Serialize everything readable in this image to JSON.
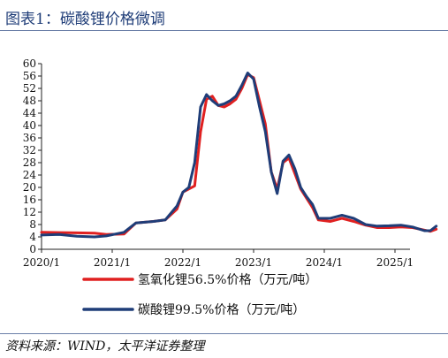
{
  "header": {
    "title": "图表1：碳酸锂价格微调"
  },
  "footer": {
    "source": "资料来源：WIND，太平洋证券整理"
  },
  "colors": {
    "accent": "#1f3d78",
    "series_red": "#e02020",
    "series_navy": "#1f3d78"
  },
  "chart_data": {
    "type": "line",
    "title": "",
    "xlabel": "",
    "ylabel": "",
    "ylim": [
      0,
      60
    ],
    "yticks": [
      0,
      4,
      8,
      12,
      16,
      20,
      24,
      28,
      32,
      36,
      40,
      44,
      48,
      52,
      56,
      60
    ],
    "xticks": [
      "2020/1",
      "2021/1",
      "2022/1",
      "2023/1",
      "2024/1",
      "2025/1"
    ],
    "grid": false,
    "legend": "bottom",
    "series": [
      {
        "name": "氢氧化锂56.5%价格（万元/吨）",
        "color": "#e02020",
        "points": [
          [
            "2020-01",
            5.5
          ],
          [
            "2020-04",
            5.4
          ],
          [
            "2020-07",
            5.3
          ],
          [
            "2020-10",
            5.2
          ],
          [
            "2020-12",
            4.8
          ],
          [
            "2021-03",
            4.9
          ],
          [
            "2021-05",
            8.5
          ],
          [
            "2021-08",
            9.0
          ],
          [
            "2021-10",
            9.5
          ],
          [
            "2021-12",
            13.0
          ],
          [
            "2022-01",
            18.5
          ],
          [
            "2022-02",
            19.5
          ],
          [
            "2022-03",
            20.5
          ],
          [
            "2022-04",
            38.0
          ],
          [
            "2022-05",
            48.5
          ],
          [
            "2022-06",
            49.5
          ],
          [
            "2022-07",
            46.5
          ],
          [
            "2022-08",
            46.0
          ],
          [
            "2022-09",
            47.0
          ],
          [
            "2022-10",
            48.5
          ],
          [
            "2022-11",
            52.0
          ],
          [
            "2022-12",
            56.5
          ],
          [
            "2023-01",
            55.5
          ],
          [
            "2023-02",
            48.0
          ],
          [
            "2023-03",
            40.5
          ],
          [
            "2023-04",
            25.0
          ],
          [
            "2023-05",
            19.5
          ],
          [
            "2023-06",
            28.0
          ],
          [
            "2023-07",
            29.5
          ],
          [
            "2023-08",
            24.5
          ],
          [
            "2023-09",
            19.5
          ],
          [
            "2023-10",
            16.5
          ],
          [
            "2023-11",
            13.5
          ],
          [
            "2023-12",
            9.5
          ],
          [
            "2024-02",
            9.0
          ],
          [
            "2024-04",
            10.0
          ],
          [
            "2024-06",
            9.0
          ],
          [
            "2024-08",
            7.8
          ],
          [
            "2024-10",
            7.0
          ],
          [
            "2024-12",
            7.0
          ],
          [
            "2025-02",
            7.2
          ],
          [
            "2025-04",
            7.0
          ],
          [
            "2025-06",
            6.2
          ],
          [
            "2025-07",
            5.8
          ],
          [
            "2025-08",
            6.5
          ]
        ]
      },
      {
        "name": "碳酸锂99.5%价格（万元/吨）",
        "color": "#1f3d78",
        "points": [
          [
            "2020-01",
            4.6
          ],
          [
            "2020-04",
            4.8
          ],
          [
            "2020-07",
            4.2
          ],
          [
            "2020-10",
            4.0
          ],
          [
            "2020-12",
            4.3
          ],
          [
            "2021-03",
            5.5
          ],
          [
            "2021-05",
            8.5
          ],
          [
            "2021-08",
            9.0
          ],
          [
            "2021-10",
            9.5
          ],
          [
            "2021-12",
            14.0
          ],
          [
            "2022-01",
            18.5
          ],
          [
            "2022-02",
            20.0
          ],
          [
            "2022-03",
            28.0
          ],
          [
            "2022-04",
            46.0
          ],
          [
            "2022-05",
            50.0
          ],
          [
            "2022-06",
            48.0
          ],
          [
            "2022-07",
            46.5
          ],
          [
            "2022-08",
            47.0
          ],
          [
            "2022-09",
            48.0
          ],
          [
            "2022-10",
            49.5
          ],
          [
            "2022-11",
            53.0
          ],
          [
            "2022-12",
            57.0
          ],
          [
            "2023-01",
            55.0
          ],
          [
            "2023-02",
            46.0
          ],
          [
            "2023-03",
            38.0
          ],
          [
            "2023-04",
            25.0
          ],
          [
            "2023-05",
            18.0
          ],
          [
            "2023-06",
            28.5
          ],
          [
            "2023-07",
            30.5
          ],
          [
            "2023-08",
            26.0
          ],
          [
            "2023-09",
            20.0
          ],
          [
            "2023-10",
            17.0
          ],
          [
            "2023-11",
            14.5
          ],
          [
            "2023-12",
            10.0
          ],
          [
            "2024-02",
            10.0
          ],
          [
            "2024-04",
            11.0
          ],
          [
            "2024-06",
            10.0
          ],
          [
            "2024-08",
            8.0
          ],
          [
            "2024-10",
            7.5
          ],
          [
            "2024-12",
            7.6
          ],
          [
            "2025-02",
            7.8
          ],
          [
            "2025-04",
            7.2
          ],
          [
            "2025-06",
            6.0
          ],
          [
            "2025-07",
            6.0
          ],
          [
            "2025-08",
            7.5
          ]
        ]
      }
    ]
  }
}
